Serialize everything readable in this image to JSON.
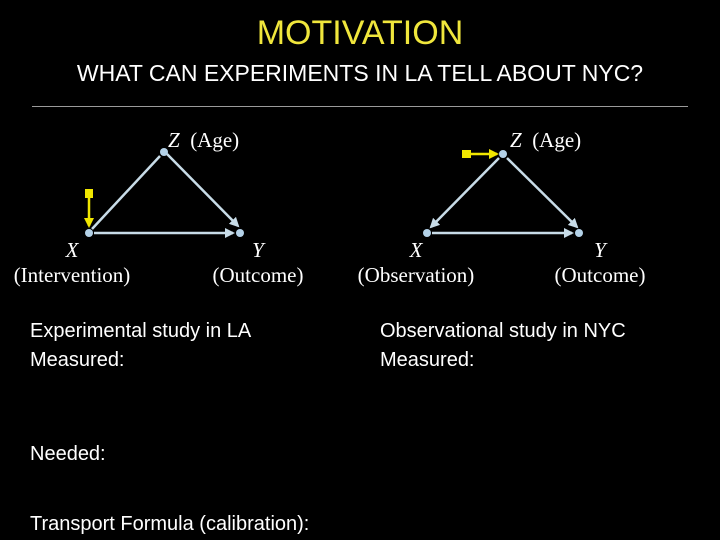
{
  "slide": {
    "title": "MOTIVATION",
    "subtitle": "WHAT CAN EXPERIMENTS IN LA TELL ABOUT NYC?",
    "colors": {
      "background": "#000000",
      "title": "#f0e63c",
      "edge": "#c8dce8",
      "node": "#b4d2e8",
      "intervention": "#f0e600",
      "text": "#ffffff"
    }
  },
  "left_diagram": {
    "z_var": "Z",
    "z_label": "(Age)",
    "x_var": "X",
    "x_label": "(Intervention)",
    "y_var": "Y",
    "y_label": "(Outcome)"
  },
  "right_diagram": {
    "z_var": "Z",
    "z_label": "(Age)",
    "x_var": "X",
    "x_label": "(Observation)",
    "y_var": "Y",
    "y_label": "(Outcome)"
  },
  "left_study": {
    "title": "Experimental study in LA",
    "measured": "Measured:"
  },
  "right_study": {
    "title": "Observational study in NYC",
    "measured": "Measured:"
  },
  "needed_label": "Needed:",
  "transport_label": "Transport Formula (calibration):"
}
